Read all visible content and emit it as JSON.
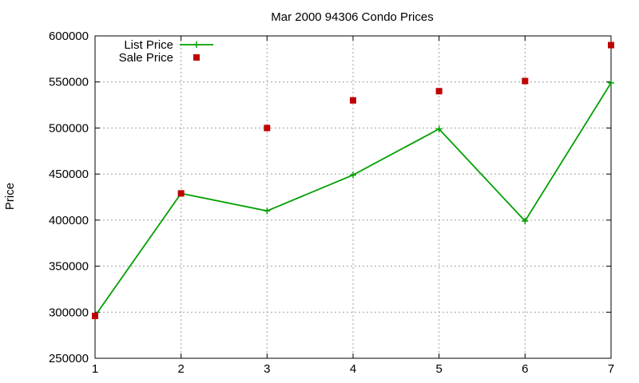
{
  "chart_data": {
    "type": "line",
    "title": "Mar 2000 94306 Condo Prices",
    "xlabel": "",
    "ylabel": "Price",
    "xlim": [
      1,
      7
    ],
    "ylim": [
      250000,
      600000
    ],
    "x_ticks": [
      1,
      2,
      3,
      4,
      5,
      6,
      7
    ],
    "y_ticks": [
      250000,
      300000,
      350000,
      400000,
      450000,
      500000,
      550000,
      600000
    ],
    "grid": true,
    "legend_position": "top-left",
    "series": [
      {
        "name": "List Price",
        "style": "linespoints",
        "marker": "plus",
        "color": "#00a000",
        "x": [
          1,
          2,
          3,
          4,
          5,
          6,
          7
        ],
        "y": [
          296000,
          429000,
          410000,
          449000,
          499000,
          399000,
          549000
        ]
      },
      {
        "name": "Sale Price",
        "style": "points",
        "marker": "square",
        "color": "#c00000",
        "x": [
          1,
          2,
          3,
          4,
          5,
          6,
          7
        ],
        "y": [
          296000,
          429000,
          500000,
          530000,
          540000,
          551000,
          590000
        ]
      }
    ]
  }
}
